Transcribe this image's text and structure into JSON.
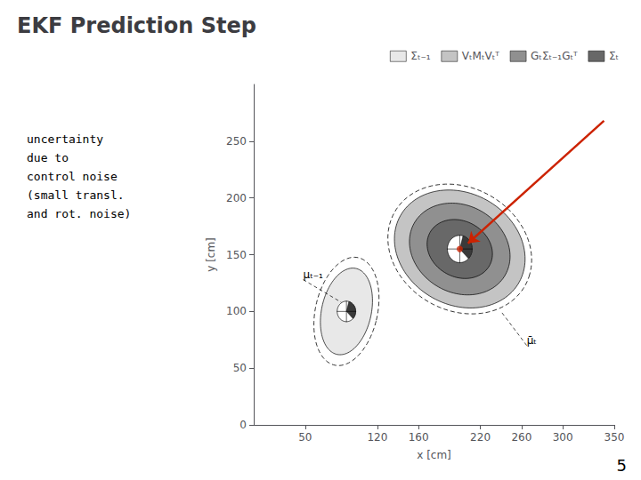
{
  "chart_data": {
    "type": "ellipse",
    "title": "EKF Prediction Step",
    "subtitle": [
      "uncertainty",
      "due to",
      "control noise",
      "(small transl.",
      "and rot. noise)"
    ],
    "footer": "5",
    "xlabel": "x [cm]",
    "ylabel": "y [cm]",
    "xlim": [
      0,
      350
    ],
    "ylim": [
      0,
      300
    ],
    "xticks": [
      50,
      120,
      160,
      220,
      260,
      300,
      350
    ],
    "yticks": [
      0,
      50,
      100,
      150,
      200,
      250
    ],
    "grid": false,
    "legend": "upper right",
    "series": [
      {
        "name": "Σ̄ₜ₋₁",
        "color": "#e8e8e8",
        "center": [
          90,
          100
        ],
        "width": 48,
        "height": 78,
        "angle": -15
      },
      {
        "name": "VₜMₜVₜᵀ",
        "color": "#c4c4c4",
        "center": [
          200,
          155
        ],
        "width": 130,
        "height": 100,
        "angle": -20
      },
      {
        "name": "GₜΣₜ₋₁Gₜᵀ",
        "color": "#909090",
        "center": [
          200,
          155
        ],
        "width": 100,
        "height": 78,
        "angle": -20
      },
      {
        "name": "Σ̄ₜ",
        "color": "#686868",
        "center": [
          200,
          155
        ],
        "width": 65,
        "height": 50,
        "angle": -20
      }
    ],
    "outlines": [
      {
        "center": [
          90,
          100
        ],
        "width": 60,
        "height": 97.5,
        "angle": -15,
        "line_style": "dashed"
      },
      {
        "center": [
          200,
          155
        ],
        "width": 143,
        "height": 110,
        "angle": -20,
        "line_style": "dashed"
      }
    ],
    "robots": [
      {
        "center": [
          90,
          100
        ],
        "radius": 9,
        "heading": 15
      },
      {
        "center": [
          200,
          155
        ],
        "radius": 12,
        "heading": 15
      }
    ],
    "points": [
      {
        "x": 200,
        "y": 155,
        "color": "#cc2200",
        "marker": "circle"
      }
    ],
    "arrows": [
      {
        "from": [
          340,
          268
        ],
        "to": [
          208,
          160
        ],
        "color": "#cc2200"
      }
    ],
    "annotations": [
      {
        "text": "μₜ₋₁",
        "xy": [
          85,
          108
        ],
        "xytext": [
          48,
          128
        ]
      },
      {
        "text": "μ̄ₜ",
        "xy": [
          240,
          100
        ],
        "xytext": [
          265,
          70
        ]
      }
    ]
  }
}
